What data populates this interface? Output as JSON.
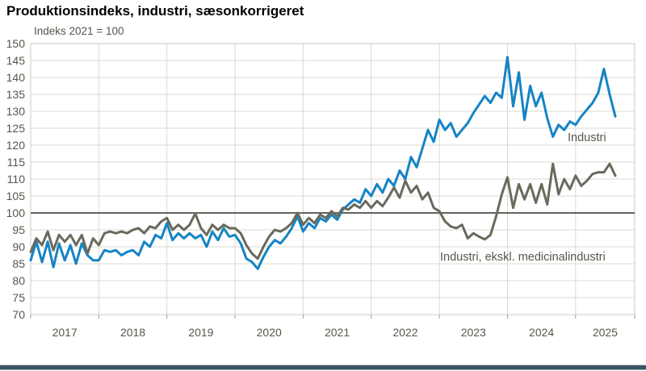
{
  "title": "Produktionsindeks, industri, sæsonkorrigeret",
  "subtitle": "Indeks 2021 = 100",
  "series_labels": {
    "industri": "Industri",
    "ekskl": "Industri, ekskl. medicinalindustri"
  },
  "colors": {
    "industri_line": "#1584c5",
    "ekskl_line": "#6b695c",
    "reference_line": "#4f4d44",
    "grid_line": "#d9d9d2",
    "axis_text": "#57554a",
    "footer_bar": "#3a5560"
  },
  "chart_data": {
    "type": "line",
    "title": "Produktionsindeks, industri, sæsonkorrigeret",
    "subtitle": "Indeks 2021 = 100",
    "x_freq": "monthly",
    "x_start": "2017-01",
    "x_end": "2025-08",
    "years": [
      "2017",
      "2018",
      "2019",
      "2020",
      "2021",
      "2022",
      "2023",
      "2024",
      "2025"
    ],
    "ylim": [
      70,
      150
    ],
    "y_tick_step": 5,
    "reference_line": 100,
    "grid": true,
    "legend_position": "annotations-in-plot",
    "series": [
      {
        "name": "Industri",
        "color": "#1584c5",
        "values": [
          86,
          91.5,
          85.5,
          91.5,
          84,
          91,
          86,
          90.5,
          85,
          91,
          87.5,
          86,
          86,
          89,
          88.5,
          89,
          87.5,
          88.5,
          89,
          87.5,
          91.5,
          90,
          93.5,
          92.5,
          97,
          92,
          94,
          92.5,
          94,
          92.5,
          93.5,
          90,
          94.5,
          92,
          95.5,
          93,
          93.5,
          91,
          86.5,
          85.5,
          83.5,
          87,
          90,
          92,
          91,
          93,
          95.5,
          99,
          94.5,
          97,
          95.5,
          98.5,
          97.5,
          99.5,
          98,
          101,
          102.5,
          104,
          103,
          107,
          105,
          108.5,
          106,
          110,
          108,
          112.5,
          110,
          116.5,
          113.5,
          119,
          124.5,
          121,
          127.5,
          124.5,
          126.5,
          122.5,
          124.5,
          126.5,
          129.5,
          132,
          134.5,
          132.5,
          135.5,
          134,
          146,
          131.5,
          141.5,
          127.5,
          137.5,
          131.5,
          135.5,
          128,
          122.5,
          126,
          124.5,
          127,
          126,
          128.5,
          130.5,
          132.5,
          135.5,
          142.5,
          135,
          128.5
        ]
      },
      {
        "name": "Industri, ekskl. medicinalindustri",
        "color": "#6b695c",
        "values": [
          88.5,
          92.5,
          90.5,
          94.5,
          89,
          93.5,
          91.5,
          93.5,
          90.5,
          93.5,
          88,
          92.5,
          90.5,
          94,
          94.5,
          94,
          94.5,
          94,
          95,
          95.5,
          94,
          96,
          95.5,
          97.5,
          98.5,
          95,
          96.5,
          95,
          96.5,
          99.8,
          95.5,
          93.5,
          96.5,
          95,
          96.5,
          95.5,
          95.5,
          94,
          90.5,
          88,
          86.5,
          90,
          93,
          95,
          94.5,
          95.5,
          97,
          100,
          96.5,
          98.5,
          97,
          99.5,
          98.5,
          100.5,
          99,
          101.5,
          101,
          102.5,
          101.5,
          103.5,
          101.5,
          103.5,
          102,
          104.5,
          107.5,
          104.5,
          109.5,
          106,
          108,
          104,
          106,
          101.5,
          100.5,
          97.5,
          96,
          95.5,
          96.5,
          92.5,
          94,
          93,
          92.2,
          93.5,
          99,
          105.5,
          110.5,
          101.5,
          108.5,
          104,
          108.5,
          103,
          108.5,
          102.5,
          114.5,
          105.5,
          110,
          107,
          111,
          108,
          109.5,
          111.5,
          112,
          112,
          114.5,
          111
        ]
      }
    ]
  }
}
